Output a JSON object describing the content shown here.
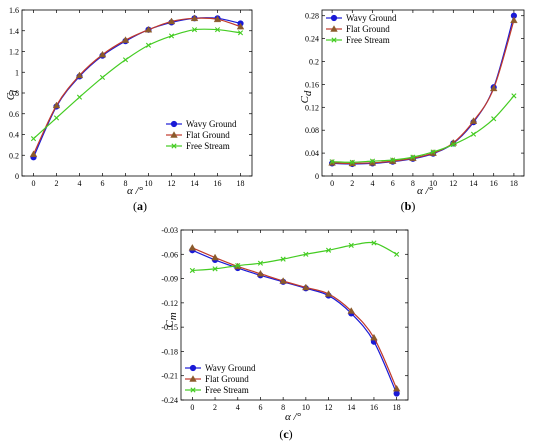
{
  "colors": {
    "wavy": "#1a1ad6",
    "flat": "#c0392b",
    "free": "#44cc22",
    "flat_marker": "#8b5a2b"
  },
  "chart_data": [
    {
      "type": "line",
      "panel_label": "a",
      "xlabel": "α /°",
      "ylabel": "C",
      "ylabel_sub": "l",
      "x": [
        0,
        2,
        4,
        6,
        8,
        10,
        12,
        14,
        16,
        18
      ],
      "xlim": [
        -1,
        19
      ],
      "ylim": [
        0,
        1.6
      ],
      "xticks": [
        "0",
        "2",
        "4",
        "6",
        "8",
        "10",
        "12",
        "14",
        "16",
        "18"
      ],
      "yticks": [
        "0",
        "0.2",
        "0.4",
        "0.6",
        "0.8",
        "1",
        "1.2",
        "1.4",
        "1.6"
      ],
      "grid": false,
      "legend_position": "bottom-right",
      "series": [
        {
          "name": "Wavy Ground",
          "values": [
            0.18,
            0.67,
            0.96,
            1.16,
            1.3,
            1.41,
            1.48,
            1.52,
            1.52,
            1.47
          ]
        },
        {
          "name": "Flat Ground",
          "values": [
            0.21,
            0.68,
            0.97,
            1.17,
            1.31,
            1.41,
            1.49,
            1.52,
            1.51,
            1.44
          ]
        },
        {
          "name": "Free Stream",
          "values": [
            0.36,
            0.56,
            0.76,
            0.95,
            1.12,
            1.26,
            1.35,
            1.41,
            1.41,
            1.38
          ]
        }
      ]
    },
    {
      "type": "line",
      "panel_label": "b",
      "xlabel": "α /°",
      "ylabel": "C",
      "ylabel_sub": "d",
      "x": [
        0,
        2,
        4,
        6,
        8,
        10,
        12,
        14,
        16,
        18
      ],
      "xlim": [
        -1,
        19
      ],
      "ylim": [
        0,
        0.29
      ],
      "xticks": [
        "0",
        "2",
        "4",
        "6",
        "8",
        "10",
        "12",
        "14",
        "16",
        "18"
      ],
      "yticks": [
        "0",
        "0.04",
        "0.08",
        "0.12",
        "0.16",
        "0.2",
        "0.24",
        "0.28"
      ],
      "ytick_values": [
        0,
        0.04,
        0.08,
        0.12,
        0.16,
        0.2,
        0.24,
        0.28
      ],
      "grid": false,
      "legend_position": "top-left",
      "series": [
        {
          "name": "Wavy Ground",
          "values": [
            0.022,
            0.021,
            0.022,
            0.025,
            0.03,
            0.039,
            0.057,
            0.094,
            0.155,
            0.28
          ]
        },
        {
          "name": "Flat Ground",
          "values": [
            0.023,
            0.022,
            0.023,
            0.026,
            0.031,
            0.04,
            0.058,
            0.096,
            0.153,
            0.272
          ]
        },
        {
          "name": "Free Stream",
          "values": [
            0.025,
            0.024,
            0.026,
            0.028,
            0.033,
            0.042,
            0.055,
            0.073,
            0.1,
            0.14
          ]
        }
      ]
    },
    {
      "type": "line",
      "panel_label": "c",
      "xlabel": "α /°",
      "ylabel": "C",
      "ylabel_sub": "m",
      "x": [
        0,
        2,
        4,
        6,
        8,
        10,
        12,
        14,
        16,
        18
      ],
      "xlim": [
        -1,
        19
      ],
      "ylim": [
        -0.24,
        -0.03
      ],
      "xticks": [
        "0",
        "2",
        "4",
        "6",
        "8",
        "10",
        "12",
        "14",
        "16",
        "18"
      ],
      "yticks": [
        "-0.03",
        "-0.06",
        "-0.09",
        "-0.12",
        "-0.15",
        "-0.18",
        "-0.21",
        "-0.24"
      ],
      "ytick_values": [
        -0.03,
        -0.06,
        -0.09,
        -0.12,
        -0.15,
        -0.18,
        -0.21,
        -0.24
      ],
      "grid": false,
      "legend_position": "bottom-left",
      "series": [
        {
          "name": "Wavy Ground",
          "values": [
            -0.055,
            -0.067,
            -0.077,
            -0.086,
            -0.094,
            -0.102,
            -0.111,
            -0.133,
            -0.168,
            -0.232
          ]
        },
        {
          "name": "Flat Ground",
          "values": [
            -0.052,
            -0.064,
            -0.075,
            -0.084,
            -0.093,
            -0.101,
            -0.109,
            -0.13,
            -0.163,
            -0.226
          ]
        },
        {
          "name": "Free Stream",
          "values": [
            -0.08,
            -0.078,
            -0.074,
            -0.071,
            -0.066,
            -0.06,
            -0.055,
            -0.049,
            -0.046,
            -0.06
          ]
        }
      ]
    }
  ]
}
